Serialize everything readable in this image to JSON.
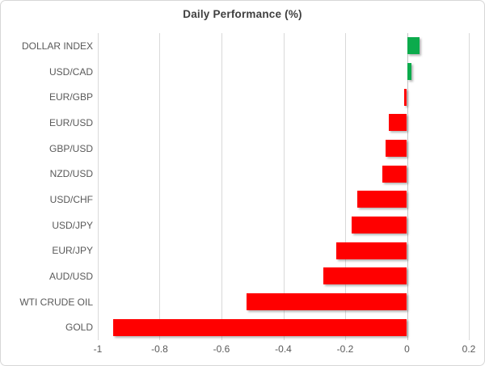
{
  "chart_data": {
    "type": "bar",
    "orientation": "horizontal",
    "title": "Daily Performance (%)",
    "categories": [
      "DOLLAR INDEX",
      "USD/CAD",
      "EUR/GBP",
      "EUR/USD",
      "GBP/USD",
      "NZD/USD",
      "USD/CHF",
      "USD/JPY",
      "EUR/JPY",
      "AUD/USD",
      "WTI CRUDE OIL",
      "GOLD"
    ],
    "values": [
      0.04,
      0.015,
      -0.01,
      -0.06,
      -0.07,
      -0.08,
      -0.16,
      -0.18,
      -0.23,
      -0.27,
      -0.52,
      -0.95
    ],
    "xlabel": "",
    "ylabel": "",
    "xlim": [
      -1,
      0.2
    ],
    "xticks": [
      -1,
      -0.8,
      -0.6,
      -0.4,
      -0.2,
      0,
      0.2
    ],
    "xtick_labels": [
      "-1",
      "-0.8",
      "-0.6",
      "-0.4",
      "-0.2",
      "0",
      "0.2"
    ],
    "grid": "vertical",
    "legend_position": "none",
    "colors": {
      "positive": "#0cab4c",
      "negative": "#ff0000",
      "gridline": "#d9d9d9",
      "zero_axis": "#c3c3c3",
      "title_text": "#3f3f3f",
      "label_text": "#595959"
    }
  }
}
